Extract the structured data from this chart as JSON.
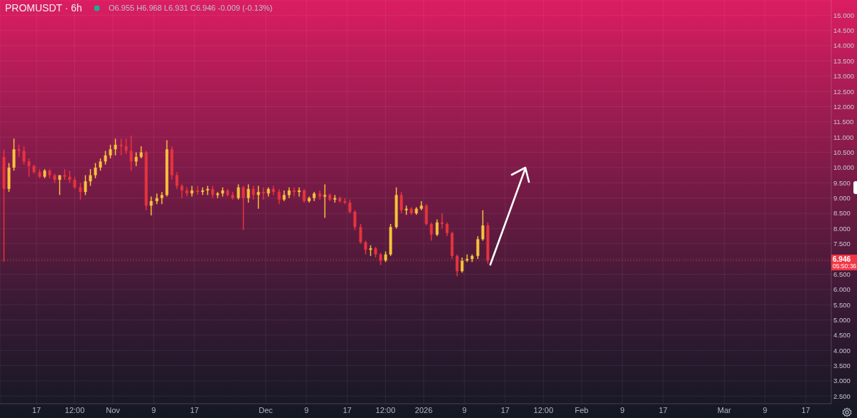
{
  "chart_data": {
    "type": "candlestick",
    "title": "PROMUSDT · 6h",
    "subtitle": "O6.955 H6.968 L6.931 C6.946 -0.009 (-0.13%)",
    "x": [
      "2025-10-10T12:00",
      "2025-10-11T12:00",
      "2025-10-12T12:00",
      "2025-10-13T12:00",
      "2025-10-14T12:00",
      "2025-10-15T12:00",
      "2025-10-16T12:00",
      "2025-10-17T12:00",
      "2025-10-18T12:00",
      "2025-10-19T12:00",
      "2025-10-20T12:00",
      "2025-10-21T12:00",
      "2025-10-22T12:00",
      "2025-10-23T12:00",
      "2025-10-24T12:00",
      "2025-10-25T12:00",
      "2025-10-26T12:00",
      "2025-10-27T12:00",
      "2025-10-28T12:00",
      "2025-10-29T12:00",
      "2025-10-30T12:00",
      "2025-10-31T12:00",
      "2025-11-01T12:00",
      "2025-11-02T12:00",
      "2025-11-03T12:00",
      "2025-11-04T12:00",
      "2025-11-05T12:00",
      "2025-11-06T12:00",
      "2025-11-07T12:00",
      "2025-11-08T12:00",
      "2025-11-09T12:00",
      "2025-11-10T12:00",
      "2025-11-11T12:00",
      "2025-11-12T12:00",
      "2025-11-13T12:00",
      "2025-11-14T12:00",
      "2025-11-15T12:00",
      "2025-11-16T12:00",
      "2025-11-17T12:00",
      "2025-11-18T12:00",
      "2025-11-19T12:00",
      "2025-11-20T12:00",
      "2025-11-21T12:00",
      "2025-11-22T12:00",
      "2025-11-23T12:00",
      "2025-11-24T12:00",
      "2025-11-25T12:00",
      "2025-11-26T12:00",
      "2025-11-27T12:00",
      "2025-11-28T12:00",
      "2025-11-29T12:00",
      "2025-11-30T12:00",
      "2025-12-01T12:00",
      "2025-12-02T12:00",
      "2025-12-03T12:00",
      "2025-12-04T12:00",
      "2025-12-05T12:00",
      "2025-12-06T12:00",
      "2025-12-07T12:00",
      "2025-12-08T12:00",
      "2025-12-09T12:00",
      "2025-12-10T12:00",
      "2025-12-11T12:00",
      "2025-12-12T12:00",
      "2025-12-13T12:00",
      "2025-12-14T12:00",
      "2025-12-15T12:00",
      "2025-12-16T12:00",
      "2025-12-17T12:00",
      "2025-12-18T12:00",
      "2025-12-19T12:00",
      "2025-12-20T12:00",
      "2025-12-21T12:00",
      "2025-12-22T12:00",
      "2025-12-23T12:00",
      "2025-12-24T12:00",
      "2025-12-25T12:00",
      "2025-12-26T12:00",
      "2025-12-27T12:00",
      "2025-12-28T12:00",
      "2025-12-29T12:00",
      "2025-12-30T12:00",
      "2025-12-31T12:00",
      "2026-01-01T12:00",
      "2026-01-02T12:00",
      "2026-01-03T12:00",
      "2026-01-04T12:00",
      "2026-01-05T12:00",
      "2026-01-06T12:00",
      "2026-01-07T12:00",
      "2026-01-08T12:00",
      "2026-01-09T12:00",
      "2026-01-10T12:00",
      "2026-01-11T12:00",
      "2026-01-12T12:00",
      "2026-01-13T12:00"
    ],
    "ohlc": [
      [
        10.35,
        10.6,
        6.92,
        9.3
      ],
      [
        9.3,
        10.15,
        9.2,
        10.0
      ],
      [
        10.0,
        10.95,
        9.9,
        10.6
      ],
      [
        10.6,
        10.75,
        10.35,
        10.55
      ],
      [
        10.55,
        10.7,
        10.1,
        10.2
      ],
      [
        10.2,
        10.3,
        9.7,
        10.05
      ],
      [
        10.05,
        10.1,
        9.8,
        9.85
      ],
      [
        9.85,
        9.95,
        9.65,
        9.7
      ],
      [
        9.7,
        9.95,
        9.65,
        9.9
      ],
      [
        9.9,
        9.95,
        9.65,
        9.75
      ],
      [
        9.75,
        9.8,
        9.5,
        9.6
      ],
      [
        9.6,
        9.75,
        9.1,
        9.75
      ],
      [
        9.75,
        9.95,
        9.6,
        9.7
      ],
      [
        9.7,
        9.9,
        9.5,
        9.6
      ],
      [
        9.6,
        9.7,
        9.3,
        9.35
      ],
      [
        9.35,
        9.5,
        8.95,
        9.2
      ],
      [
        9.2,
        9.75,
        9.1,
        9.55
      ],
      [
        9.55,
        9.95,
        9.4,
        9.75
      ],
      [
        9.75,
        10.15,
        9.65,
        10.0
      ],
      [
        10.0,
        10.3,
        9.9,
        10.2
      ],
      [
        10.2,
        10.55,
        10.1,
        10.4
      ],
      [
        10.4,
        10.75,
        10.3,
        10.6
      ],
      [
        10.6,
        10.95,
        10.4,
        10.75
      ],
      [
        10.75,
        10.95,
        10.4,
        10.7
      ],
      [
        10.7,
        10.95,
        10.45,
        10.55
      ],
      [
        10.55,
        11.05,
        9.9,
        10.2
      ],
      [
        10.2,
        10.5,
        10.05,
        10.35
      ],
      [
        10.35,
        10.7,
        10.3,
        10.5
      ],
      [
        10.5,
        10.55,
        8.6,
        8.75
      ],
      [
        8.75,
        9.05,
        8.43,
        8.9
      ],
      [
        8.9,
        9.15,
        8.8,
        9.0
      ],
      [
        9.0,
        9.2,
        8.8,
        9.1
      ],
      [
        9.1,
        10.9,
        9.05,
        10.6
      ],
      [
        10.6,
        10.7,
        9.6,
        9.75
      ],
      [
        9.75,
        9.85,
        9.3,
        9.4
      ],
      [
        9.4,
        9.45,
        9.0,
        9.25
      ],
      [
        9.25,
        9.35,
        9.05,
        9.15
      ],
      [
        9.15,
        9.4,
        9.05,
        9.25
      ],
      [
        9.25,
        9.4,
        9.1,
        9.2
      ],
      [
        9.2,
        9.35,
        9.1,
        9.25
      ],
      [
        9.25,
        9.4,
        9.1,
        9.3
      ],
      [
        9.3,
        9.4,
        9.0,
        9.1
      ],
      [
        9.1,
        9.2,
        9.0,
        9.15
      ],
      [
        9.15,
        9.35,
        9.05,
        9.25
      ],
      [
        9.25,
        9.3,
        9.05,
        9.1
      ],
      [
        9.1,
        9.2,
        8.95,
        9.0
      ],
      [
        9.0,
        9.45,
        8.95,
        9.35
      ],
      [
        9.35,
        9.4,
        7.95,
        9.0
      ],
      [
        9.0,
        9.45,
        8.85,
        9.3
      ],
      [
        9.3,
        9.4,
        8.95,
        9.1
      ],
      [
        9.1,
        9.4,
        8.65,
        9.2
      ],
      [
        9.2,
        9.35,
        8.95,
        9.15
      ],
      [
        9.15,
        9.35,
        9.05,
        9.3
      ],
      [
        9.3,
        9.4,
        9.1,
        9.2
      ],
      [
        9.2,
        9.3,
        8.8,
        8.95
      ],
      [
        8.95,
        9.25,
        8.9,
        9.1
      ],
      [
        9.1,
        9.35,
        9.0,
        9.25
      ],
      [
        9.25,
        9.35,
        9.05,
        9.2
      ],
      [
        9.2,
        9.35,
        9.05,
        9.25
      ],
      [
        9.25,
        9.3,
        8.85,
        8.9
      ],
      [
        8.9,
        9.05,
        8.85,
        9.0
      ],
      [
        9.0,
        9.2,
        8.9,
        9.15
      ],
      [
        9.15,
        9.25,
        8.95,
        9.05
      ],
      [
        9.05,
        9.45,
        8.35,
        9.1
      ],
      [
        9.1,
        9.15,
        8.9,
        8.95
      ],
      [
        8.95,
        9.1,
        8.85,
        9.0
      ],
      [
        9.0,
        9.05,
        8.85,
        8.9
      ],
      [
        8.9,
        9.0,
        8.8,
        8.85
      ],
      [
        8.85,
        8.95,
        8.5,
        8.55
      ],
      [
        8.55,
        8.6,
        7.95,
        8.05
      ],
      [
        8.05,
        8.15,
        7.5,
        7.55
      ],
      [
        7.55,
        7.6,
        7.15,
        7.3
      ],
      [
        7.3,
        7.45,
        7.1,
        7.35
      ],
      [
        7.35,
        7.4,
        7.05,
        7.15
      ],
      [
        7.15,
        7.2,
        6.8,
        6.95
      ],
      [
        6.95,
        7.25,
        6.9,
        7.15
      ],
      [
        7.15,
        8.15,
        7.1,
        8.05
      ],
      [
        8.05,
        9.35,
        8.0,
        9.1
      ],
      [
        9.1,
        9.2,
        8.5,
        8.6
      ],
      [
        8.6,
        8.75,
        8.45,
        8.65
      ],
      [
        8.65,
        8.7,
        8.45,
        8.5
      ],
      [
        8.5,
        8.7,
        8.45,
        8.65
      ],
      [
        8.65,
        8.9,
        8.6,
        8.75
      ],
      [
        8.75,
        8.8,
        8.1,
        8.15
      ],
      [
        8.15,
        8.2,
        7.6,
        7.8
      ],
      [
        7.8,
        8.3,
        7.75,
        8.2
      ],
      [
        8.2,
        8.5,
        8.0,
        8.15
      ],
      [
        8.15,
        8.2,
        7.75,
        7.85
      ],
      [
        7.85,
        7.9,
        7.0,
        7.1
      ],
      [
        7.1,
        7.15,
        6.43,
        6.6
      ],
      [
        6.6,
        7.05,
        6.55,
        6.95
      ],
      [
        6.95,
        7.15,
        6.9,
        7.0
      ],
      [
        7.0,
        7.15,
        6.9,
        7.1
      ],
      [
        7.1,
        7.75,
        7.0,
        7.65
      ],
      [
        7.65,
        8.6,
        7.6,
        8.1
      ],
      [
        8.1,
        8.2,
        6.85,
        6.946
      ]
    ],
    "colors": [
      "#e8333c",
      "#f9c23c",
      "#f9c23c",
      "#e8333c",
      "#e8333c",
      "#e8333c",
      "#e8333c",
      "#e8333c",
      "#f9c23c",
      "#e8333c",
      "#e8333c",
      "#f9c23c",
      "#e8333c",
      "#e8333c",
      "#e8333c",
      "#e8333c",
      "#f9c23c",
      "#f9c23c",
      "#f9c23c",
      "#f9c23c",
      "#f9c23c",
      "#f9c23c",
      "#f9c23c",
      "#e8333c",
      "#e8333c",
      "#e8333c",
      "#f9c23c",
      "#f9c23c",
      "#e8333c",
      "#f9c23c",
      "#f9c23c",
      "#f9c23c",
      "#f9c23c",
      "#e8333c",
      "#e8333c",
      "#e8333c",
      "#e8333c",
      "#f9c23c",
      "#e8333c",
      "#f9c23c",
      "#f9c23c",
      "#e8333c",
      "#f9c23c",
      "#f9c23c",
      "#e8333c",
      "#e8333c",
      "#f9c23c",
      "#e8333c",
      "#f9c23c",
      "#e8333c",
      "#f9c23c",
      "#e8333c",
      "#f9c23c",
      "#e8333c",
      "#e8333c",
      "#f9c23c",
      "#f9c23c",
      "#e8333c",
      "#f9c23c",
      "#e8333c",
      "#f9c23c",
      "#f9c23c",
      "#e8333c",
      "#f9c23c",
      "#e8333c",
      "#f9c23c",
      "#e8333c",
      "#e8333c",
      "#e8333c",
      "#e8333c",
      "#e8333c",
      "#e8333c",
      "#f9c23c",
      "#e8333c",
      "#e8333c",
      "#f9c23c",
      "#f9c23c",
      "#f9c23c",
      "#e8333c",
      "#f9c23c",
      "#e8333c",
      "#f9c23c",
      "#f9c23c",
      "#e8333c",
      "#e8333c",
      "#f9c23c",
      "#e8333c",
      "#e8333c",
      "#e8333c",
      "#e8333c",
      "#f9c23c",
      "#f9c23c",
      "#f9c23c",
      "#f9c23c",
      "#f9c23c",
      "#e8333c"
    ],
    "xlim": [
      "2025-10-09T20:00",
      "2026-03-22T00:00"
    ],
    "xticks": [
      {
        "value": "2025-10-17",
        "label": "17"
      },
      {
        "value": "2025-10-24T12:00",
        "label": "12:00"
      },
      {
        "value": "2025-11-01",
        "label": "Nov"
      },
      {
        "value": "2025-11-09",
        "label": "9"
      },
      {
        "value": "2025-11-17",
        "label": "17"
      },
      {
        "value": "2025-12-01",
        "label": "Dec"
      },
      {
        "value": "2025-12-09",
        "label": "9"
      },
      {
        "value": "2025-12-17",
        "label": "17"
      },
      {
        "value": "2025-12-24T12:00",
        "label": "12:00"
      },
      {
        "value": "2026-01-01",
        "label": "2026"
      },
      {
        "value": "2026-01-09",
        "label": "9"
      },
      {
        "value": "2026-01-17",
        "label": "17"
      },
      {
        "value": "2026-01-24T12:00",
        "label": "12:00"
      },
      {
        "value": "2026-02-01",
        "label": "Feb"
      },
      {
        "value": "2026-02-09",
        "label": "9"
      },
      {
        "value": "2026-02-17",
        "label": "17"
      },
      {
        "value": "2026-03-01",
        "label": "Mar"
      },
      {
        "value": "2026-03-09",
        "label": "9"
      },
      {
        "value": "2026-03-17",
        "label": "17"
      }
    ],
    "ylim": [
      2.25,
      15.5
    ],
    "yticks": [
      {
        "value": 2.5,
        "label": "2.500"
      },
      {
        "value": 3,
        "label": "3.000"
      },
      {
        "value": 3.5,
        "label": "3.500"
      },
      {
        "value": 4,
        "label": "4.000"
      },
      {
        "value": 4.5,
        "label": "4.500"
      },
      {
        "value": 5,
        "label": "5.000"
      },
      {
        "value": 5.5,
        "label": "5.500"
      },
      {
        "value": 6,
        "label": "6.000"
      },
      {
        "value": 6.5,
        "label": "6.500"
      },
      {
        "value": 7,
        "label": null
      },
      {
        "value": 7.5,
        "label": "7.500"
      },
      {
        "value": 8,
        "label": "8.000"
      },
      {
        "value": 8.5,
        "label": "8.500"
      },
      {
        "value": 9,
        "label": "9.000"
      },
      {
        "value": 9.5,
        "label": "9.500"
      },
      {
        "value": 10,
        "label": "10.000"
      },
      {
        "value": 10.5,
        "label": "10.500"
      },
      {
        "value": 11,
        "label": "11.000"
      },
      {
        "value": 11.5,
        "label": "11.500"
      },
      {
        "value": 12,
        "label": "12.000"
      },
      {
        "value": 12.5,
        "label": "12.500"
      },
      {
        "value": 13,
        "label": "13.000"
      },
      {
        "value": 13.5,
        "label": "13.500"
      },
      {
        "value": 14,
        "label": "14.000"
      },
      {
        "value": 14.5,
        "label": "14.500"
      },
      {
        "value": 15,
        "label": "15.000"
      }
    ],
    "grid": true,
    "ref_lines": [
      {
        "axis": "y",
        "value": 6.946,
        "label": "6.946",
        "color": "#f23645",
        "line_style": "dotted"
      }
    ],
    "annotations": [
      "05:50:36"
    ]
  }
}
